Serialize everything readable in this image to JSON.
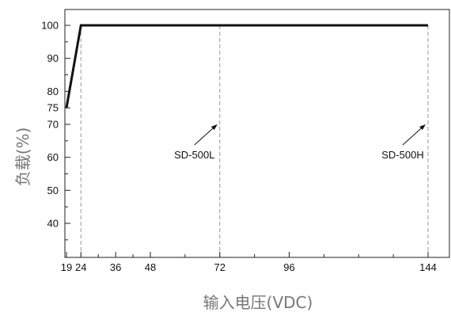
{
  "chart_data": {
    "type": "line",
    "xlabel": "输入电压(VDC)",
    "ylabel": "负载(%)",
    "x_ticks": [
      19,
      24,
      36,
      48,
      72,
      96,
      144
    ],
    "y_ticks": [
      40,
      50,
      60,
      70,
      75,
      80,
      90,
      100
    ],
    "xlim": [
      19,
      144
    ],
    "ylim": [
      30,
      105
    ],
    "series": [
      {
        "x": [
          19,
          24,
          144
        ],
        "y": [
          75,
          100,
          100
        ]
      }
    ],
    "reference_lines": [
      24,
      72,
      144
    ],
    "annotations": [
      {
        "text": "SD-500L",
        "x": 72,
        "y": 70
      },
      {
        "text": "SD-500H",
        "x": 144,
        "y": 70
      }
    ]
  }
}
